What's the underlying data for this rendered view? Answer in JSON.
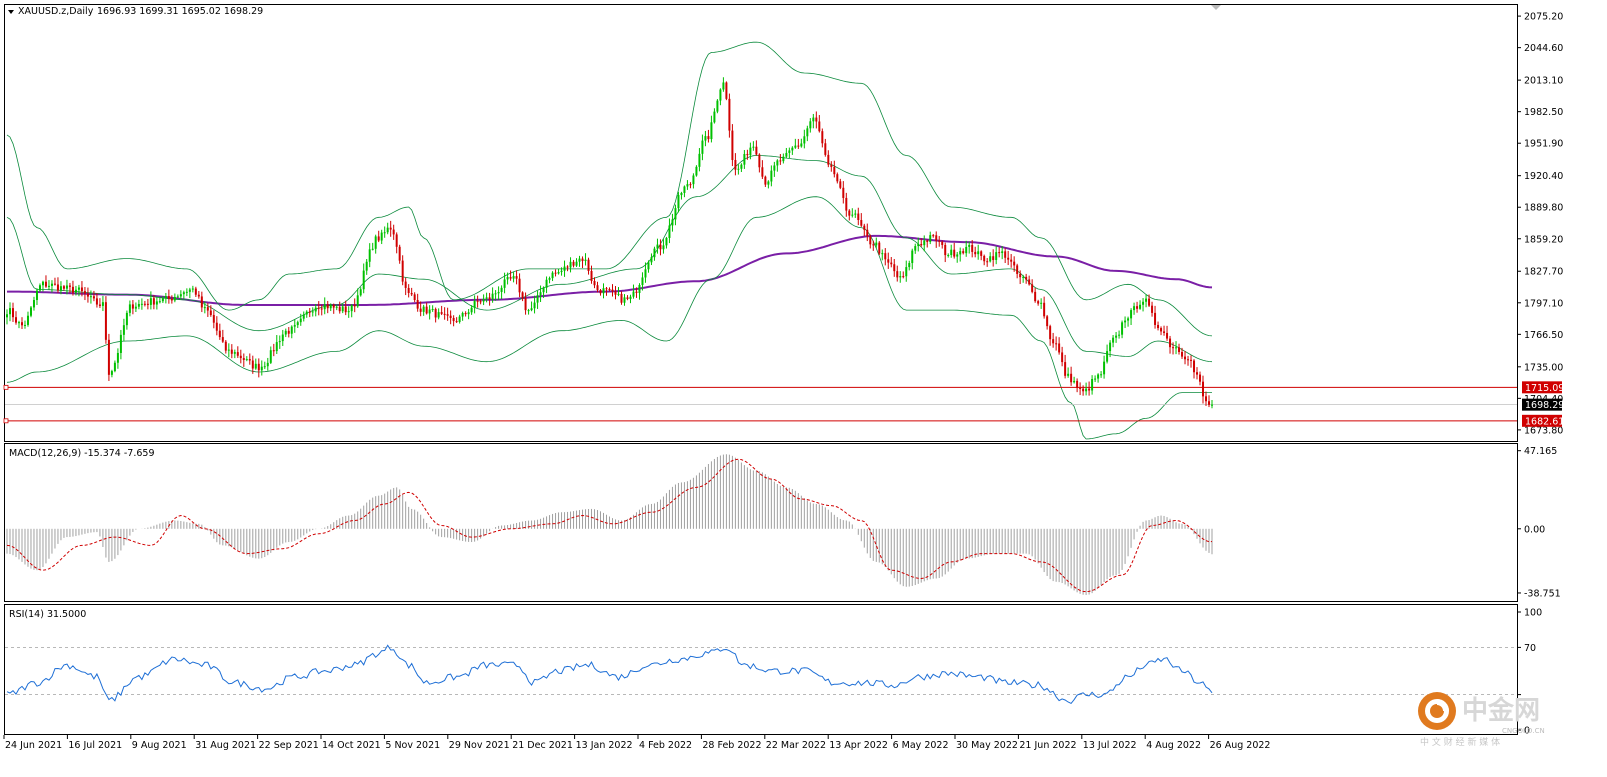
{
  "main_header": {
    "symbol": "XAUUSD.z,Daily",
    "ohlc": "1696.93 1699.31 1695.02 1698.29"
  },
  "macd_header": "MACD(12,26,9) -15.374 -7.659",
  "rsi_header": "RSI(14) 31.5000",
  "logo": {
    "name": "中金网",
    "domain": "CNGOLD.CN",
    "tagline": "中 文 财 经 新 媒 体"
  },
  "colors": {
    "bull": "#00c000",
    "bear": "#d00000",
    "bollinger": "#0b8a3c",
    "ma": "#7a1fa6",
    "macd_hist": "#a0a0a0",
    "macd_signal": "#d00000",
    "rsi": "#1e6fd6",
    "level_line": "#d00000",
    "price_tag": "#000000",
    "level_tag": "#d00000",
    "logo": "#e07a1f"
  },
  "chart_data": [
    {
      "type": "candlestick",
      "title": "XAUUSD.z,Daily",
      "ylim": [
        1664.0,
        2085.0
      ],
      "y_ticks": [
        2075.2,
        2044.6,
        2013.1,
        1982.5,
        1951.9,
        1920.4,
        1889.8,
        1859.2,
        1827.7,
        1797.1,
        1766.5,
        1735.0,
        1704.4,
        1673.8
      ],
      "x_labels": [
        "24 Jun 2021",
        "16 Jul 2021",
        "9 Aug 2021",
        "31 Aug 2021",
        "22 Sep 2021",
        "14 Oct 2021",
        "5 Nov 2021",
        "29 Nov 2021",
        "21 Dec 2021",
        "13 Jan 2022",
        "4 Feb 2022",
        "28 Feb 2022",
        "22 Mar 2022",
        "13 Apr 2022",
        "6 May 2022",
        "30 May 2022",
        "21 Jun 2022",
        "13 Jul 2022",
        "4 Aug 2022",
        "26 Aug 2022"
      ],
      "last_price": 1698.29,
      "levels": [
        1715.09,
        1682.61
      ],
      "close_anchors": [
        [
          0,
          1790
        ],
        [
          5,
          1775
        ],
        [
          12,
          1815
        ],
        [
          22,
          1810
        ],
        [
          32,
          1795
        ],
        [
          34,
          1730
        ],
        [
          42,
          1795
        ],
        [
          52,
          1800
        ],
        [
          62,
          1810
        ],
        [
          66,
          1790
        ],
        [
          74,
          1750
        ],
        [
          84,
          1735
        ],
        [
          94,
          1770
        ],
        [
          104,
          1795
        ],
        [
          114,
          1790
        ],
        [
          124,
          1860
        ],
        [
          128,
          1870
        ],
        [
          134,
          1805
        ],
        [
          139,
          1790
        ],
        [
          149,
          1780
        ],
        [
          159,
          1800
        ],
        [
          169,
          1820
        ],
        [
          174,
          1790
        ],
        [
          182,
          1825
        ],
        [
          192,
          1840
        ],
        [
          197,
          1810
        ],
        [
          207,
          1800
        ],
        [
          217,
          1850
        ],
        [
          227,
          1910
        ],
        [
          233,
          1955
        ],
        [
          239,
          2010
        ],
        [
          243,
          1925
        ],
        [
          249,
          1950
        ],
        [
          253,
          1915
        ],
        [
          258,
          1935
        ],
        [
          264,
          1950
        ],
        [
          269,
          1975
        ],
        [
          275,
          1925
        ],
        [
          281,
          1885
        ],
        [
          289,
          1855
        ],
        [
          294,
          1835
        ],
        [
          298,
          1820
        ],
        [
          304,
          1855
        ],
        [
          309,
          1860
        ],
        [
          314,
          1845
        ],
        [
          321,
          1850
        ],
        [
          326,
          1840
        ],
        [
          332,
          1845
        ],
        [
          339,
          1820
        ],
        [
          344,
          1800
        ],
        [
          349,
          1760
        ],
        [
          354,
          1725
        ],
        [
          359,
          1710
        ],
        [
          364,
          1725
        ],
        [
          369,
          1760
        ],
        [
          374,
          1785
        ],
        [
          379,
          1800
        ],
        [
          384,
          1775
        ],
        [
          389,
          1755
        ],
        [
          394,
          1745
        ],
        [
          397,
          1725
        ],
        [
          400,
          1700
        ],
        [
          402,
          1698
        ]
      ],
      "bollinger": {
        "upper_anchors": [
          [
            0,
            1960
          ],
          [
            10,
            1870
          ],
          [
            20,
            1830
          ],
          [
            40,
            1840
          ],
          [
            60,
            1830
          ],
          [
            74,
            1790
          ],
          [
            84,
            1800
          ],
          [
            94,
            1825
          ],
          [
            110,
            1830
          ],
          [
            124,
            1880
          ],
          [
            134,
            1890
          ],
          [
            139,
            1860
          ],
          [
            149,
            1800
          ],
          [
            174,
            1830
          ],
          [
            200,
            1830
          ],
          [
            220,
            1880
          ],
          [
            235,
            2040
          ],
          [
            250,
            2050
          ],
          [
            266,
            2020
          ],
          [
            285,
            2010
          ],
          [
            300,
            1940
          ],
          [
            315,
            1890
          ],
          [
            335,
            1880
          ],
          [
            345,
            1860
          ],
          [
            360,
            1800
          ],
          [
            374,
            1815
          ],
          [
            384,
            1800
          ],
          [
            402,
            1765
          ]
        ],
        "middle_anchors": [
          [
            0,
            1880
          ],
          [
            10,
            1810
          ],
          [
            40,
            1805
          ],
          [
            60,
            1800
          ],
          [
            84,
            1770
          ],
          [
            110,
            1795
          ],
          [
            124,
            1825
          ],
          [
            139,
            1820
          ],
          [
            160,
            1790
          ],
          [
            185,
            1815
          ],
          [
            210,
            1830
          ],
          [
            230,
            1900
          ],
          [
            250,
            1940
          ],
          [
            270,
            1935
          ],
          [
            285,
            1920
          ],
          [
            300,
            1860
          ],
          [
            315,
            1825
          ],
          [
            335,
            1830
          ],
          [
            345,
            1810
          ],
          [
            360,
            1750
          ],
          [
            374,
            1745
          ],
          [
            384,
            1760
          ],
          [
            402,
            1740
          ]
        ],
        "lower_anchors": [
          [
            0,
            1720
          ],
          [
            10,
            1730
          ],
          [
            40,
            1760
          ],
          [
            60,
            1765
          ],
          [
            84,
            1730
          ],
          [
            110,
            1750
          ],
          [
            124,
            1770
          ],
          [
            139,
            1755
          ],
          [
            160,
            1740
          ],
          [
            185,
            1770
          ],
          [
            205,
            1780
          ],
          [
            220,
            1760
          ],
          [
            235,
            1820
          ],
          [
            250,
            1880
          ],
          [
            270,
            1900
          ],
          [
            285,
            1870
          ],
          [
            300,
            1790
          ],
          [
            315,
            1790
          ],
          [
            335,
            1785
          ],
          [
            345,
            1760
          ],
          [
            355,
            1700
          ],
          [
            360,
            1665
          ],
          [
            370,
            1670
          ],
          [
            380,
            1685
          ],
          [
            392,
            1710
          ],
          [
            402,
            1710
          ]
        ]
      },
      "ma_anchors": [
        [
          0,
          1808
        ],
        [
          40,
          1805
        ],
        [
          80,
          1795
        ],
        [
          120,
          1795
        ],
        [
          160,
          1800
        ],
        [
          200,
          1808
        ],
        [
          230,
          1818
        ],
        [
          260,
          1845
        ],
        [
          290,
          1862
        ],
        [
          320,
          1856
        ],
        [
          350,
          1842
        ],
        [
          370,
          1828
        ],
        [
          390,
          1820
        ],
        [
          402,
          1812
        ]
      ]
    },
    {
      "type": "bar",
      "title": "MACD(12,26,9) -15.374 -7.659",
      "ylim": [
        -43.0,
        50.0
      ],
      "y_ticks": [
        47.165,
        0.0,
        -38.751
      ],
      "main_value": -15.374,
      "signal_value": -7.659,
      "hist_anchors": [
        [
          0,
          -15
        ],
        [
          10,
          -25
        ],
        [
          20,
          -5
        ],
        [
          30,
          -2
        ],
        [
          34,
          -20
        ],
        [
          44,
          0
        ],
        [
          56,
          5
        ],
        [
          64,
          3
        ],
        [
          72,
          -10
        ],
        [
          84,
          -18
        ],
        [
          94,
          -8
        ],
        [
          104,
          0
        ],
        [
          114,
          8
        ],
        [
          124,
          20
        ],
        [
          130,
          25
        ],
        [
          135,
          12
        ],
        [
          145,
          -5
        ],
        [
          155,
          -8
        ],
        [
          165,
          2
        ],
        [
          175,
          5
        ],
        [
          185,
          10
        ],
        [
          195,
          12
        ],
        [
          205,
          5
        ],
        [
          215,
          15
        ],
        [
          225,
          28
        ],
        [
          240,
          45
        ],
        [
          250,
          35
        ],
        [
          260,
          25
        ],
        [
          270,
          15
        ],
        [
          280,
          5
        ],
        [
          290,
          -20
        ],
        [
          300,
          -35
        ],
        [
          310,
          -30
        ],
        [
          320,
          -18
        ],
        [
          330,
          -15
        ],
        [
          340,
          -15
        ],
        [
          350,
          -32
        ],
        [
          360,
          -40
        ],
        [
          370,
          -28
        ],
        [
          380,
          5
        ],
        [
          385,
          8
        ],
        [
          392,
          3
        ],
        [
          402,
          -15
        ]
      ],
      "signal_anchors": [
        [
          0,
          -10
        ],
        [
          12,
          -25
        ],
        [
          25,
          -10
        ],
        [
          36,
          -5
        ],
        [
          48,
          -10
        ],
        [
          58,
          8
        ],
        [
          66,
          0
        ],
        [
          80,
          -15
        ],
        [
          92,
          -12
        ],
        [
          104,
          -3
        ],
        [
          116,
          5
        ],
        [
          126,
          15
        ],
        [
          134,
          22
        ],
        [
          145,
          2
        ],
        [
          155,
          -5
        ],
        [
          168,
          0
        ],
        [
          182,
          3
        ],
        [
          192,
          8
        ],
        [
          202,
          3
        ],
        [
          215,
          10
        ],
        [
          230,
          25
        ],
        [
          244,
          42
        ],
        [
          255,
          30
        ],
        [
          265,
          18
        ],
        [
          275,
          14
        ],
        [
          285,
          5
        ],
        [
          295,
          -25
        ],
        [
          305,
          -30
        ],
        [
          315,
          -20
        ],
        [
          325,
          -15
        ],
        [
          335,
          -15
        ],
        [
          345,
          -20
        ],
        [
          360,
          -38
        ],
        [
          372,
          -28
        ],
        [
          382,
          2
        ],
        [
          390,
          5
        ],
        [
          402,
          -8
        ]
      ]
    },
    {
      "type": "line",
      "title": "RSI(14) 31.5000",
      "ylim": [
        0,
        100
      ],
      "y_ticks": [
        100,
        70,
        30,
        0
      ],
      "last_value": 31.5,
      "rsi_anchors": [
        [
          0,
          30
        ],
        [
          10,
          40
        ],
        [
          20,
          55
        ],
        [
          30,
          45
        ],
        [
          34,
          25
        ],
        [
          44,
          45
        ],
        [
          56,
          60
        ],
        [
          66,
          55
        ],
        [
          76,
          40
        ],
        [
          86,
          35
        ],
        [
          96,
          45
        ],
        [
          106,
          50
        ],
        [
          116,
          55
        ],
        [
          124,
          65
        ],
        [
          128,
          70
        ],
        [
          134,
          55
        ],
        [
          140,
          40
        ],
        [
          150,
          45
        ],
        [
          160,
          55
        ],
        [
          170,
          55
        ],
        [
          176,
          40
        ],
        [
          184,
          50
        ],
        [
          194,
          55
        ],
        [
          204,
          45
        ],
        [
          214,
          55
        ],
        [
          224,
          60
        ],
        [
          234,
          65
        ],
        [
          240,
          70
        ],
        [
          246,
          55
        ],
        [
          256,
          50
        ],
        [
          266,
          50
        ],
        [
          276,
          40
        ],
        [
          286,
          40
        ],
        [
          296,
          38
        ],
        [
          304,
          45
        ],
        [
          314,
          48
        ],
        [
          324,
          45
        ],
        [
          334,
          40
        ],
        [
          344,
          38
        ],
        [
          354,
          25
        ],
        [
          360,
          30
        ],
        [
          366,
          30
        ],
        [
          374,
          45
        ],
        [
          380,
          55
        ],
        [
          386,
          60
        ],
        [
          392,
          50
        ],
        [
          398,
          40
        ],
        [
          402,
          31.5
        ]
      ]
    }
  ]
}
